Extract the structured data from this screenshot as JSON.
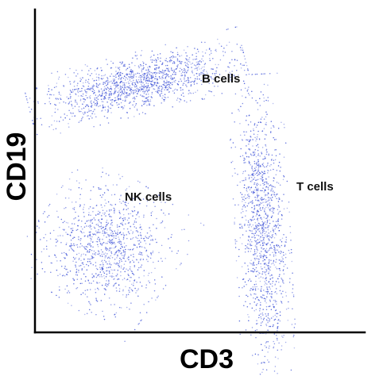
{
  "chart_data": {
    "type": "scatter",
    "title": "",
    "xlabel": "CD3",
    "ylabel": "CD19",
    "xlim": [
      0,
      100
    ],
    "ylim": [
      0,
      100
    ],
    "grid": false,
    "legend": "none",
    "point_color": "#3a4fd6",
    "clusters": [
      {
        "label": "B cells",
        "center": [
          31,
          77
        ],
        "spread": [
          14,
          4
        ],
        "tilt": 0.25,
        "n": 1400
      },
      {
        "label": "NK cells",
        "center": [
          22,
          27
        ],
        "spread": [
          9,
          9
        ],
        "tilt": -0.6,
        "n": 1100
      },
      {
        "label": "T cells",
        "center": [
          69,
          32
        ],
        "spread": [
          3.5,
          20
        ],
        "tilt": 0.05,
        "n": 1300
      }
    ]
  }
}
